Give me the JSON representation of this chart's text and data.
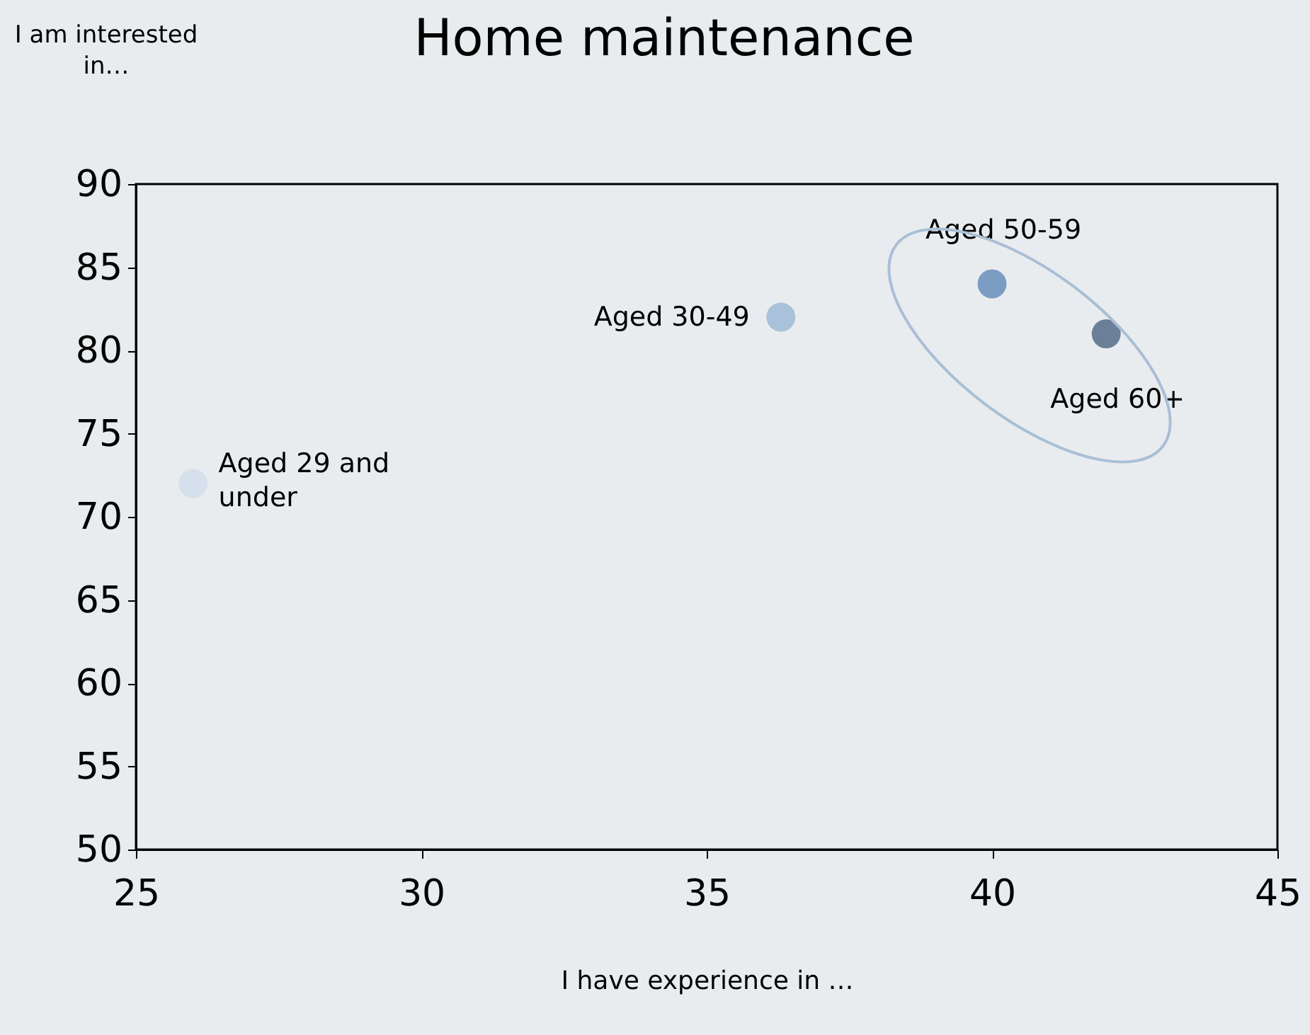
{
  "chart_data": {
    "type": "scatter",
    "title": "Home maintenance",
    "xlabel": "I have experience in …",
    "ylabel": "I am interested in…",
    "xlim": [
      25,
      45
    ],
    "xticks": [
      25,
      30,
      35,
      40,
      45
    ],
    "ylim": [
      50,
      90
    ],
    "yticks": [
      50,
      55,
      60,
      65,
      70,
      75,
      80,
      85,
      90
    ],
    "grid": false,
    "legend": false,
    "marker": "circle",
    "series": [
      {
        "name": "Aged 29 and under",
        "color": "#d5e0ec",
        "x": [
          26
        ],
        "values": [
          72
        ]
      },
      {
        "name": "Aged 30-49",
        "color": "#a9c1da",
        "x": [
          36.3
        ],
        "values": [
          82
        ]
      },
      {
        "name": "Aged 50-59",
        "color": "#7b9dc4",
        "x": [
          40
        ],
        "values": [
          84
        ]
      },
      {
        "name": "Aged 60+",
        "color": "#6c7f98",
        "x": [
          42
        ],
        "values": [
          81
        ]
      }
    ]
  }
}
